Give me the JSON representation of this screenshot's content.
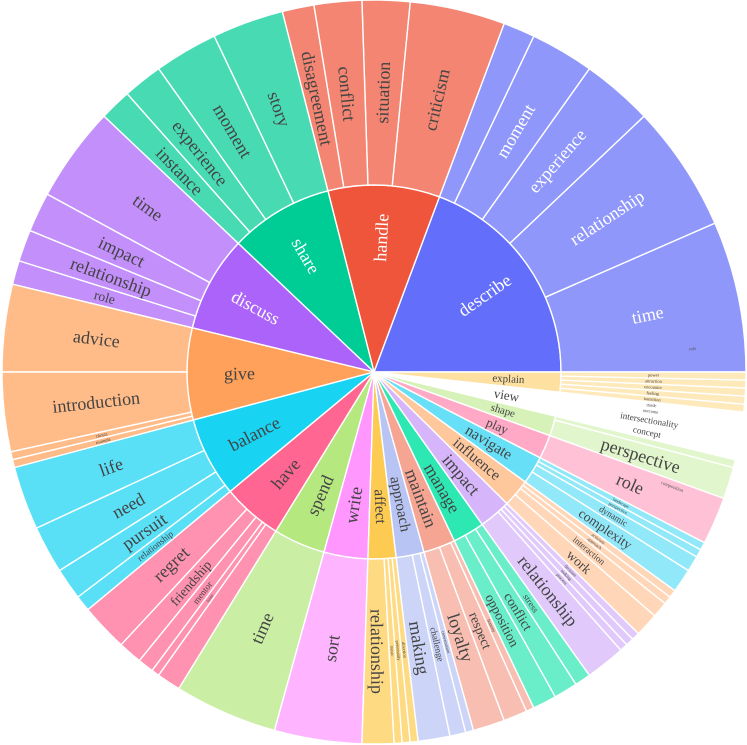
{
  "chart_data": {
    "type": "sunburst",
    "colors": {
      "describe": "#636EFA",
      "handle": "#EF553B",
      "share": "#00CC96",
      "discuss": "#AB63FA",
      "give": "#FFA15A",
      "balance": "#19D3F3",
      "have": "#FF6692",
      "spend": "#B6E880",
      "write": "#FF97FF",
      "affect": "#FECB52",
      "approach": "#B8C4F4",
      "maintain": "#F5A592",
      "manage": "#2EE8B4",
      "impact": "#D6B5FA",
      "influence": "#FFC79C",
      "navigate": "#66DFF7",
      "play": "#FFA9C6",
      "shape": "#D7F2B9",
      "view": "#FFFFFF",
      "explain": "#FEE0A0"
    },
    "verbs": [
      {
        "label": "describe",
        "value": 56,
        "children": [
          {
            "label": "time",
            "value": 19
          },
          {
            "label": "relationship",
            "value": 16
          },
          {
            "label": "experience",
            "value": 9
          },
          {
            "label": "moment",
            "value": 8
          },
          {
            "label": "",
            "value": 4
          }
        ]
      },
      {
        "label": "handle",
        "value": 28,
        "children": [
          {
            "label": "criticism",
            "value": 12
          },
          {
            "label": "situation",
            "value": 6
          },
          {
            "label": "conflict",
            "value": 6
          },
          {
            "label": "disagreement",
            "value": 4
          }
        ]
      },
      {
        "label": "share",
        "value": 26,
        "children": [
          {
            "label": "story",
            "value": 9
          },
          {
            "label": "moment",
            "value": 8
          },
          {
            "label": "experience",
            "value": 5
          },
          {
            "label": "instance",
            "value": 4
          }
        ]
      },
      {
        "label": "discuss",
        "value": 24,
        "children": [
          {
            "label": "time",
            "value": 12
          },
          {
            "label": "impact",
            "value": 5
          },
          {
            "label": "relationship",
            "value": 4
          },
          {
            "label": "role",
            "value": 3
          }
        ]
      },
      {
        "label": "give",
        "value": 23,
        "children": [
          {
            "label": "advice",
            "value": 11
          },
          {
            "label": "introduction",
            "value": 10
          },
          {
            "label": "choice",
            "value": 1
          },
          {
            "label": "example",
            "value": 1
          }
        ]
      },
      {
        "label": "balance",
        "value": 20,
        "children": [
          {
            "label": "life",
            "value": 8
          },
          {
            "label": "need",
            "value": 6
          },
          {
            "label": "pursuit",
            "value": 4
          },
          {
            "label": "relationship",
            "value": 2
          }
        ]
      },
      {
        "label": "have",
        "value": 15,
        "children": [
          {
            "label": "regret",
            "value": 6
          },
          {
            "label": "friendship",
            "value": 3
          },
          {
            "label": "mentor",
            "value": 2
          },
          {
            "label": "issue",
            "value": 1
          },
          {
            "label": "",
            "value": 3
          }
        ]
      },
      {
        "label": "spend",
        "value": 13,
        "children": [
          {
            "label": "time",
            "value": 13
          }
        ]
      },
      {
        "label": "write",
        "value": 11,
        "children": [
          {
            "label": "sort",
            "value": 11
          }
        ]
      },
      {
        "label": "affect",
        "value": 7,
        "children": [
          {
            "label": "relationship",
            "value": 4
          },
          {
            "label": "music",
            "value": 1
          },
          {
            "label": "personality",
            "value": 1
          },
          {
            "label": "direction",
            "value": 1
          }
        ]
      },
      {
        "label": "approach",
        "value": 7,
        "children": [
          {
            "label": "making",
            "value": 4
          },
          {
            "label": "challenge",
            "value": 2
          },
          {
            "label": "conversation",
            "value": 1
          }
        ]
      },
      {
        "label": "maintain",
        "value": 8,
        "children": [
          {
            "label": "loyalty",
            "value": 4
          },
          {
            "label": "respect",
            "value": 3
          },
          {
            "label": "honesty",
            "value": 1
          }
        ]
      },
      {
        "label": "manage",
        "value": 8,
        "children": [
          {
            "label": "opposition",
            "value": 3
          },
          {
            "label": "conflict",
            "value": 3
          },
          {
            "label": "stress",
            "value": 2
          }
        ]
      },
      {
        "label": "impact",
        "value": 8,
        "children": [
          {
            "label": "relationship",
            "value": 5
          },
          {
            "label": "process",
            "value": 1
          },
          {
            "label": "making",
            "value": 1
          },
          {
            "label": "decision",
            "value": 1
          }
        ]
      },
      {
        "label": "influence",
        "value": 7,
        "children": [
          {
            "label": "work",
            "value": 3
          },
          {
            "label": "interaction",
            "value": 2
          },
          {
            "label": "approach",
            "value": 1
          },
          {
            "label": "activism",
            "value": 1
          }
        ]
      },
      {
        "label": "navigate",
        "value": 7,
        "children": [
          {
            "label": "complexity",
            "value": 3
          },
          {
            "label": "dynamic",
            "value": 2
          },
          {
            "label": "perspective",
            "value": 1
          },
          {
            "label": "landscape",
            "value": 1
          }
        ]
      },
      {
        "label": "play",
        "value": 6,
        "children": [
          {
            "label": "role",
            "value": 6
          }
        ]
      },
      {
        "label": "shape",
        "value": 5,
        "children": [
          {
            "label": "perspective",
            "value": 4
          },
          {
            "label": "",
            "value": 1
          }
        ]
      },
      {
        "label": "view",
        "value": 6,
        "children": [
          {
            "label": "concept",
            "value": 2
          },
          {
            "label": "intersectionality",
            "value": 2
          },
          {
            "label": "outcome",
            "value": 1
          },
          {
            "label": "mode",
            "value": 1
          }
        ]
      },
      {
        "label": "explain",
        "value": 5,
        "children": [
          {
            "label": "transition",
            "value": 1
          },
          {
            "label": "feeling",
            "value": 1
          },
          {
            "label": "encounter",
            "value": 1
          },
          {
            "label": "attraction",
            "value": 1
          },
          {
            "label": "power",
            "value": 1
          }
        ]
      }
    ],
    "extra_labels": [
      "composition",
      "role"
    ]
  }
}
